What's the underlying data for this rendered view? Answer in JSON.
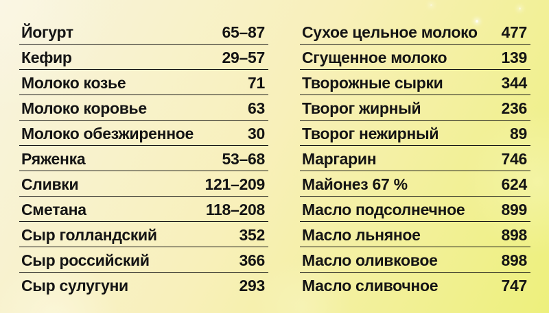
{
  "style": {
    "background_top_left": "#f8f4df",
    "background_mid": "#f8f0ba",
    "background_bottom_right": "#edf07c",
    "text_color": "#141414",
    "rule_color": "#141414"
  },
  "chart_data": {
    "type": "table",
    "layout": "two-column list, item name left, calorie value right-aligned, thin black rule between rows",
    "columns": [
      {
        "rows": [
          {
            "name": "Йогурт",
            "value": "65–87"
          },
          {
            "name": "Кефир",
            "value": "29–57"
          },
          {
            "name": "Молоко козье",
            "value": "71"
          },
          {
            "name": "Молоко коровье",
            "value": "63"
          },
          {
            "name": "Молоко обезжиренное",
            "value": "30"
          },
          {
            "name": "Ряженка",
            "value": "53–68"
          },
          {
            "name": "Сливки",
            "value": "121–209"
          },
          {
            "name": "Сметана",
            "value": "118–208"
          },
          {
            "name": "Сыр голландский",
            "value": "352"
          },
          {
            "name": "Сыр российский",
            "value": "366"
          },
          {
            "name": "Сыр сулугуни",
            "value": "293"
          }
        ]
      },
      {
        "rows": [
          {
            "name": "Сухое цельное молоко",
            "value": "477"
          },
          {
            "name": "Сгущенное молоко",
            "value": "139"
          },
          {
            "name": "Творожные сырки",
            "value": "344"
          },
          {
            "name": "Творог жирный",
            "value": "236"
          },
          {
            "name": "Творог нежирный",
            "value": "89"
          },
          {
            "name": "Маргарин",
            "value": "746"
          },
          {
            "name": "Майонез 67 %",
            "value": "624"
          },
          {
            "name": "Масло подсолнечное",
            "value": "899"
          },
          {
            "name": "Масло льняное",
            "value": "898"
          },
          {
            "name": "Масло оливковое",
            "value": "898"
          },
          {
            "name": "Масло сливочное",
            "value": "747"
          }
        ]
      }
    ]
  }
}
